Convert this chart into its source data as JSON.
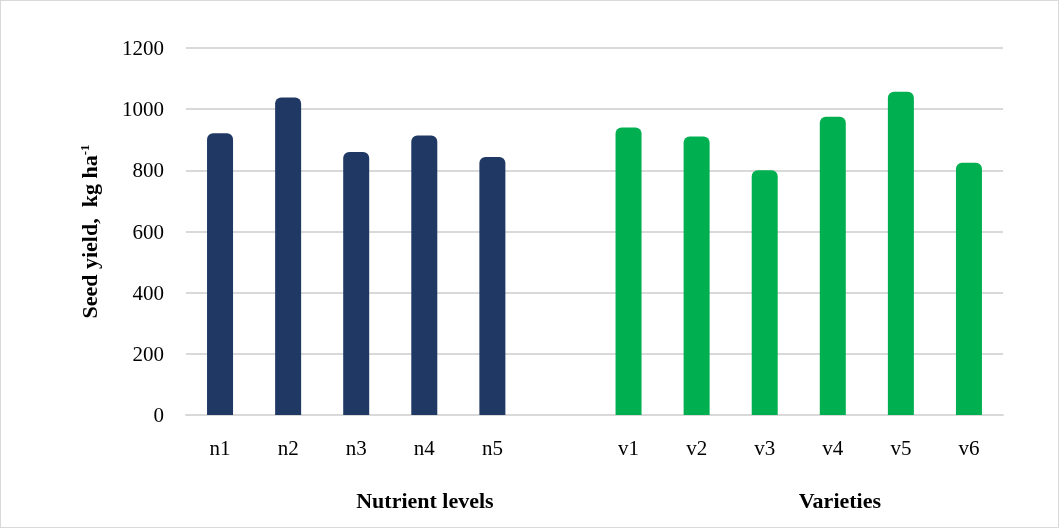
{
  "chart_data": {
    "type": "bar",
    "ylabel": "Seed yield,  kg ha$^{-1}$",
    "categories": [
      "n1",
      "n2",
      "n3",
      "n4",
      "n5",
      null,
      "v1",
      "v2",
      "v3",
      "v4",
      "v5",
      "v6"
    ],
    "series": [
      {
        "color": "#1f3864",
        "values": [
          921,
          1038,
          860,
          914,
          844,
          null,
          null,
          null,
          null,
          null,
          null,
          null
        ]
      },
      {
        "color": "#00b050",
        "values": [
          null,
          null,
          null,
          null,
          null,
          null,
          940,
          911,
          800,
          975,
          1057,
          825
        ]
      }
    ],
    "ylim": [
      0,
      1200
    ],
    "yticks": [
      0,
      200,
      400,
      600,
      800,
      1000,
      1200
    ],
    "grid": "y",
    "annotations": [
      "Nutrient levels",
      "Varieties"
    ]
  }
}
